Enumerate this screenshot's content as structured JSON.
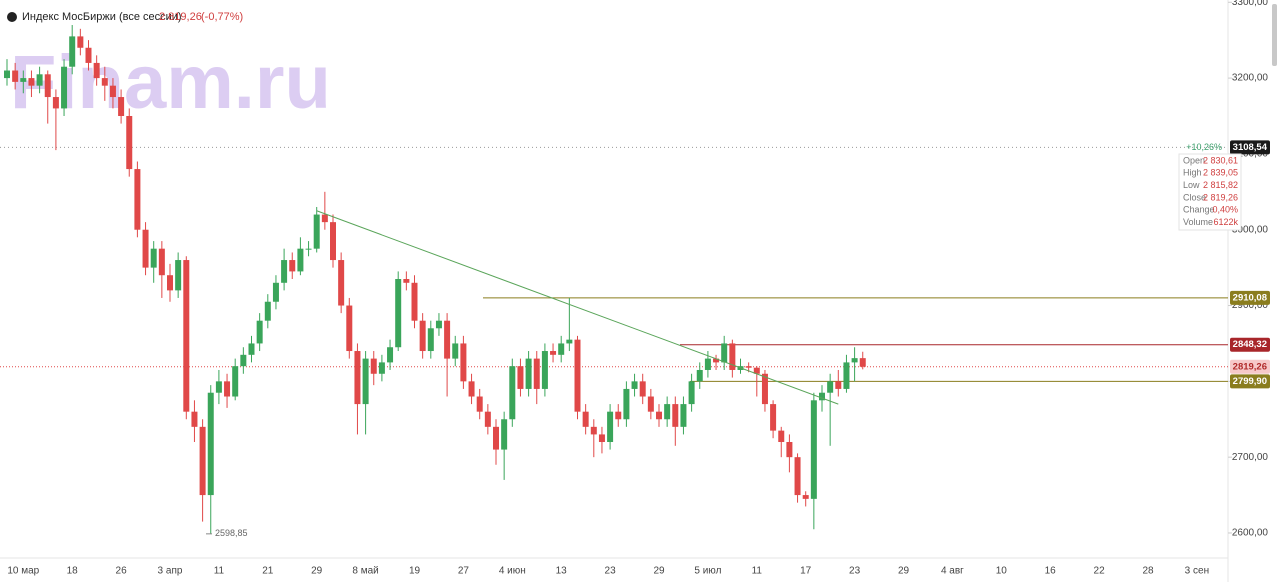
{
  "chart_data": {
    "type": "candlestick",
    "title": "Индекс МосБиржи (все сессии)",
    "last_price": {
      "value": 2819.26,
      "label": "2 819,26"
    },
    "change": {
      "value": -0.77,
      "label": "(-0,77%)"
    },
    "watermark": "Finam.ru",
    "up_color": "#3aa55a",
    "down_color": "#e04848",
    "ylim": [
      2567,
      3303
    ],
    "yticks": [
      {
        "value": 2600,
        "label": "2600,00"
      },
      {
        "value": 2700,
        "label": "2700,00"
      },
      {
        "value": 2800,
        "label": "2800,00"
      },
      {
        "value": 2900,
        "label": "2900,00"
      },
      {
        "value": 3000,
        "label": "3000,00"
      },
      {
        "value": 3100,
        "label": "3100,00"
      },
      {
        "value": 3200,
        "label": "3200,00"
      },
      {
        "value": 3300,
        "label": "3300,00"
      }
    ],
    "categories": [
      null,
      null,
      "10 мар",
      null,
      null,
      null,
      null,
      null,
      "18",
      null,
      null,
      null,
      null,
      null,
      "26",
      null,
      null,
      null,
      null,
      null,
      "3 апр",
      null,
      null,
      null,
      null,
      null,
      "11",
      null,
      null,
      null,
      null,
      null,
      "21",
      null,
      null,
      null,
      null,
      null,
      "29",
      null,
      null,
      null,
      null,
      null,
      "8 май",
      null,
      null,
      null,
      null,
      null,
      "19",
      null,
      null,
      null,
      null,
      null,
      "27",
      null,
      null,
      null,
      null,
      null,
      "4 июн",
      null,
      null,
      null,
      null,
      null,
      "13",
      null,
      null,
      null,
      null,
      null,
      "23",
      null,
      null,
      null,
      null,
      null,
      "29",
      null,
      null,
      null,
      null,
      null,
      "5 июл",
      null,
      null,
      null,
      null,
      null,
      "11",
      null,
      null,
      null,
      null,
      null,
      "17",
      null,
      null,
      null,
      null,
      null,
      "23",
      null,
      null,
      null,
      null,
      null,
      "29",
      null,
      null,
      null,
      null,
      null,
      "4 авг",
      null,
      null,
      null,
      null,
      null,
      "10",
      null,
      null,
      null,
      null,
      null,
      "16",
      null,
      null,
      null,
      null,
      null,
      "22",
      null,
      null,
      null,
      null,
      null,
      "28",
      null,
      null,
      null,
      null,
      null,
      "3 сен"
    ],
    "open": [
      3200,
      3210,
      3195,
      3200,
      3190,
      3205,
      3175,
      3160,
      3215,
      3255,
      3240,
      3220,
      3200,
      3190,
      3175,
      3150,
      3080,
      3000,
      2950,
      2975,
      2940,
      2920,
      2960,
      2760,
      2740,
      2650,
      2785,
      2800,
      2780,
      2820,
      2835,
      2850,
      2880,
      2905,
      2930,
      2960,
      2945,
      2975,
      2975,
      3020,
      3010,
      2960,
      2900,
      2840,
      2770,
      2830,
      2810,
      2825,
      2845,
      2935,
      2930,
      2880,
      2840,
      2870,
      2880,
      2830,
      2850,
      2800,
      2780,
      2760,
      2740,
      2710,
      2750,
      2820,
      2790,
      2830,
      2790,
      2840,
      2835,
      2850,
      2855,
      2760,
      2740,
      2730,
      2720,
      2760,
      2750,
      2790,
      2800,
      2780,
      2760,
      2750,
      2770,
      2740,
      2770,
      2800,
      2815,
      2830,
      2825,
      2850,
      2815,
      2820,
      2818,
      2810,
      2770,
      2735,
      2720,
      2700,
      2650,
      2645,
      2775,
      2785,
      2800,
      2790,
      2825,
      2830.61,
      null,
      null,
      null,
      null,
      null,
      null,
      null,
      null,
      null,
      null,
      null,
      null,
      null,
      null,
      null,
      null,
      null,
      null,
      null,
      null,
      null,
      null,
      null,
      null,
      null,
      null,
      null,
      null,
      null,
      null,
      null,
      null,
      null,
      null,
      null,
      null,
      null,
      null,
      null,
      null,
      null
    ],
    "high": [
      3225,
      3220,
      3210,
      3210,
      3215,
      3210,
      3185,
      3225,
      3270,
      3265,
      3250,
      3230,
      3215,
      3200,
      3185,
      3160,
      3090,
      3010,
      2985,
      2985,
      2955,
      2970,
      2965,
      2775,
      2750,
      2795,
      2815,
      2810,
      2830,
      2845,
      2860,
      2890,
      2915,
      2940,
      2975,
      2970,
      2990,
      2985,
      3030,
      3050,
      3020,
      2970,
      2910,
      2850,
      2840,
      2840,
      2835,
      2855,
      2945,
      2945,
      2940,
      2890,
      2880,
      2890,
      2890,
      2860,
      2860,
      2810,
      2790,
      2770,
      2750,
      2760,
      2830,
      2830,
      2840,
      2840,
      2850,
      2850,
      2860,
      2910,
      2860,
      2770,
      2750,
      2740,
      2770,
      2770,
      2800,
      2810,
      2810,
      2790,
      2770,
      2780,
      2780,
      2780,
      2810,
      2825,
      2840,
      2835,
      2860,
      2855,
      2830,
      2825,
      2820,
      2815,
      2775,
      2740,
      2730,
      2705,
      2655,
      2785,
      2795,
      2810,
      2815,
      2835,
      2845,
      2839.05,
      null,
      null,
      null,
      null,
      null,
      null,
      null,
      null,
      null,
      null,
      null,
      null,
      null,
      null,
      null,
      null,
      null,
      null,
      null,
      null,
      null,
      null,
      null,
      null,
      null,
      null,
      null,
      null,
      null,
      null,
      null,
      null,
      null,
      null,
      null,
      null,
      null,
      null,
      null,
      null,
      null
    ],
    "low": [
      3190,
      3185,
      3180,
      3175,
      3180,
      3140,
      3105,
      3150,
      3205,
      3230,
      3210,
      3190,
      3170,
      3160,
      3140,
      3070,
      2990,
      2940,
      2930,
      2910,
      2905,
      2910,
      2750,
      2720,
      2615,
      2598.85,
      2770,
      2765,
      2775,
      2810,
      2825,
      2840,
      2870,
      2895,
      2920,
      2935,
      2940,
      2965,
      2970,
      3000,
      2950,
      2890,
      2830,
      2730,
      2730,
      2795,
      2800,
      2815,
      2840,
      2920,
      2870,
      2830,
      2830,
      2860,
      2780,
      2820,
      2790,
      2770,
      2750,
      2730,
      2690,
      2670,
      2740,
      2780,
      2780,
      2770,
      2780,
      2825,
      2825,
      2840,
      2750,
      2730,
      2700,
      2705,
      2710,
      2740,
      2740,
      2780,
      2770,
      2750,
      2740,
      2740,
      2715,
      2730,
      2760,
      2790,
      2805,
      2815,
      2815,
      2805,
      2810,
      2812,
      2780,
      2760,
      2725,
      2700,
      2680,
      2640,
      2635,
      2605,
      2760,
      2715,
      2780,
      2785,
      2800,
      2815.82,
      null,
      null,
      null,
      null,
      null,
      null,
      null,
      null,
      null,
      null,
      null,
      null,
      null,
      null,
      null,
      null,
      null,
      null,
      null,
      null,
      null,
      null,
      null,
      null,
      null,
      null,
      null,
      null,
      null,
      null,
      null,
      null,
      null,
      null,
      null,
      null,
      null,
      null,
      null,
      null,
      null
    ],
    "close": [
      3210,
      3195,
      3200,
      3190,
      3205,
      3175,
      3160,
      3215,
      3255,
      3240,
      3220,
      3200,
      3190,
      3175,
      3150,
      3080,
      3000,
      2950,
      2975,
      2940,
      2920,
      2960,
      2760,
      2740,
      2650,
      2785,
      2800,
      2780,
      2820,
      2835,
      2850,
      2880,
      2905,
      2930,
      2960,
      2945,
      2975,
      2975,
      3020,
      3010,
      2960,
      2900,
      2840,
      2770,
      2830,
      2810,
      2825,
      2845,
      2935,
      2930,
      2880,
      2840,
      2870,
      2880,
      2830,
      2850,
      2800,
      2780,
      2760,
      2740,
      2710,
      2750,
      2820,
      2790,
      2830,
      2790,
      2840,
      2835,
      2850,
      2855,
      2760,
      2740,
      2730,
      2720,
      2760,
      2750,
      2790,
      2800,
      2780,
      2760,
      2750,
      2770,
      2740,
      2770,
      2800,
      2815,
      2830,
      2825,
      2850,
      2815,
      2820,
      2818,
      2810,
      2770,
      2735,
      2720,
      2700,
      2650,
      2645,
      2775,
      2785,
      2800,
      2790,
      2825,
      2830.61,
      2819.26,
      null,
      null,
      null,
      null,
      null,
      null,
      null,
      null,
      null,
      null,
      null,
      null,
      null,
      null,
      null,
      null,
      null,
      null,
      null,
      null,
      null,
      null,
      null,
      null,
      null,
      null,
      null,
      null,
      null,
      null,
      null,
      null,
      null,
      null,
      null,
      null,
      null,
      null,
      null,
      null,
      null
    ],
    "reference": {
      "value": 3108.54,
      "label": "3108,54",
      "change": {
        "value": 10.26,
        "label": "+10,26%"
      }
    },
    "current_price": {
      "value": 2819.26,
      "label": "2819,26"
    },
    "levels": [
      {
        "value": 2910.08,
        "label": "2910,08",
        "color": "#8a7d1e"
      },
      {
        "value": 2848.32,
        "label": "2848,32",
        "color": "#a8262a"
      },
      {
        "value": 2799.9,
        "label": "2799,90",
        "color": "#8a7d1e"
      }
    ],
    "trendline": {
      "values": [
        3025,
        2770
      ],
      "color": "#5aa55a"
    },
    "low_annotation": {
      "value": 2598.85,
      "label": "2598,85"
    },
    "ohlc_panel": [
      {
        "name": "Open",
        "value": 2830.61,
        "label": "2 830,61"
      },
      {
        "name": "High",
        "value": 2839.05,
        "label": "2 839,05"
      },
      {
        "name": "Low",
        "value": 2815.82,
        "label": "2 815,82"
      },
      {
        "name": "Close",
        "value": 2819.26,
        "label": "2 819,26"
      },
      {
        "name": "Change",
        "value": 0.4,
        "label": "0,40%"
      },
      {
        "name": "Volume",
        "value": 6122000,
        "label": "6122k"
      }
    ]
  }
}
